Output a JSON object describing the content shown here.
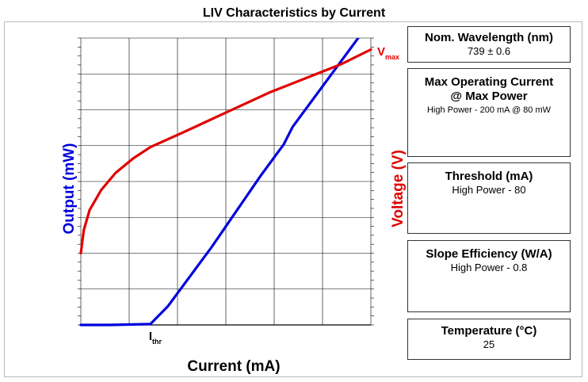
{
  "title": "LIV Characteristics by Current",
  "info_boxes": {
    "wavelength": {
      "label": "Nom. Wavelength (nm)",
      "value": "739 ± 0.6"
    },
    "max_current": {
      "label_line1": "Max Operating Current",
      "label_line2": "@ Max Power",
      "value": "High Power - 200 mA @ 80 mW"
    },
    "threshold": {
      "label": "Threshold (mA)",
      "value": "High Power - 80"
    },
    "slope": {
      "label": "Slope Efficiency (W/A)",
      "value": "High Power - 0.8"
    },
    "temperature": {
      "label": "Temperature (°C)",
      "value": "25"
    }
  },
  "chart_data": {
    "type": "line",
    "title": "LIV Characteristics by Current",
    "xlabel": "Current (mA)",
    "ylabel_left": "Output (mW)",
    "ylabel_right": "Voltage (V)",
    "x_ticks_shown": false,
    "y_ticks_shown": false,
    "grid": true,
    "x_range": [
      0,
      1
    ],
    "y_range": [
      0,
      1
    ],
    "annotations": [
      {
        "text": "I",
        "subscript": "thr",
        "anchor_x": 0.24,
        "color": "#000000"
      },
      {
        "text": "V",
        "subscript": "max",
        "anchor_x": 1.0,
        "color": "#e00000"
      }
    ],
    "series": [
      {
        "name": "Output",
        "color": "#0000dd",
        "x": [
          0.0,
          0.1,
          0.24,
          0.3,
          0.45,
          0.62,
          0.7,
          0.73,
          1.0
        ],
        "y": [
          0.0,
          0.0,
          0.003,
          0.065,
          0.27,
          0.52,
          0.63,
          0.69,
          1.06
        ]
      },
      {
        "name": "Voltage",
        "color": "#e00000",
        "x": [
          0.0,
          0.01,
          0.03,
          0.07,
          0.12,
          0.18,
          0.24,
          0.35,
          0.5,
          0.65,
          0.8,
          0.9,
          1.0
        ],
        "y": [
          0.25,
          0.33,
          0.4,
          0.47,
          0.53,
          0.58,
          0.62,
          0.67,
          0.74,
          0.81,
          0.87,
          0.91,
          0.96
        ]
      }
    ]
  }
}
